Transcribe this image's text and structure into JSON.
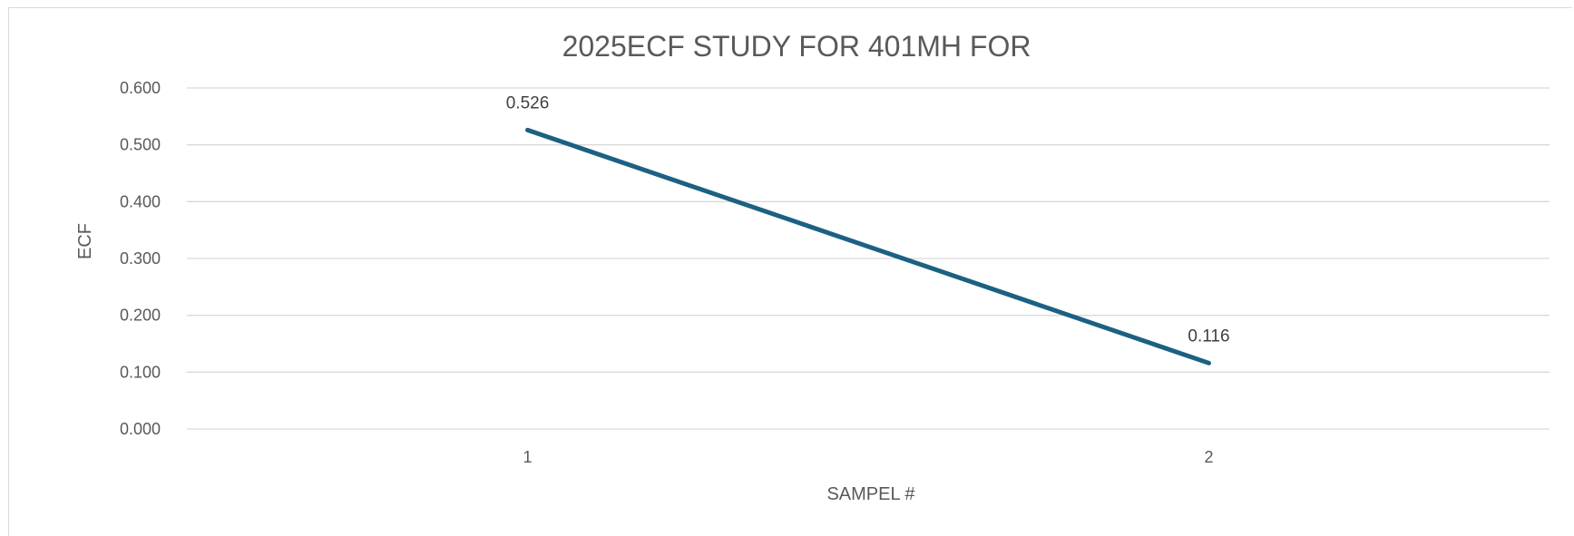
{
  "chart_data": {
    "type": "line",
    "title": "2025ECF STUDY FOR 401MH  FOR",
    "xlabel": "SAMPEL #",
    "ylabel": "ECF",
    "categories": [
      "1",
      "2"
    ],
    "series": [
      {
        "values": [
          0.526,
          0.116
        ],
        "data_labels": [
          "0.526",
          "0.116"
        ]
      }
    ],
    "ylim": [
      0,
      0.6
    ],
    "yticks": [
      "0.000",
      "0.100",
      "0.200",
      "0.300",
      "0.400",
      "0.500",
      "0.600"
    ],
    "grid": true,
    "legend": "none",
    "line_color": "#1b6183"
  }
}
